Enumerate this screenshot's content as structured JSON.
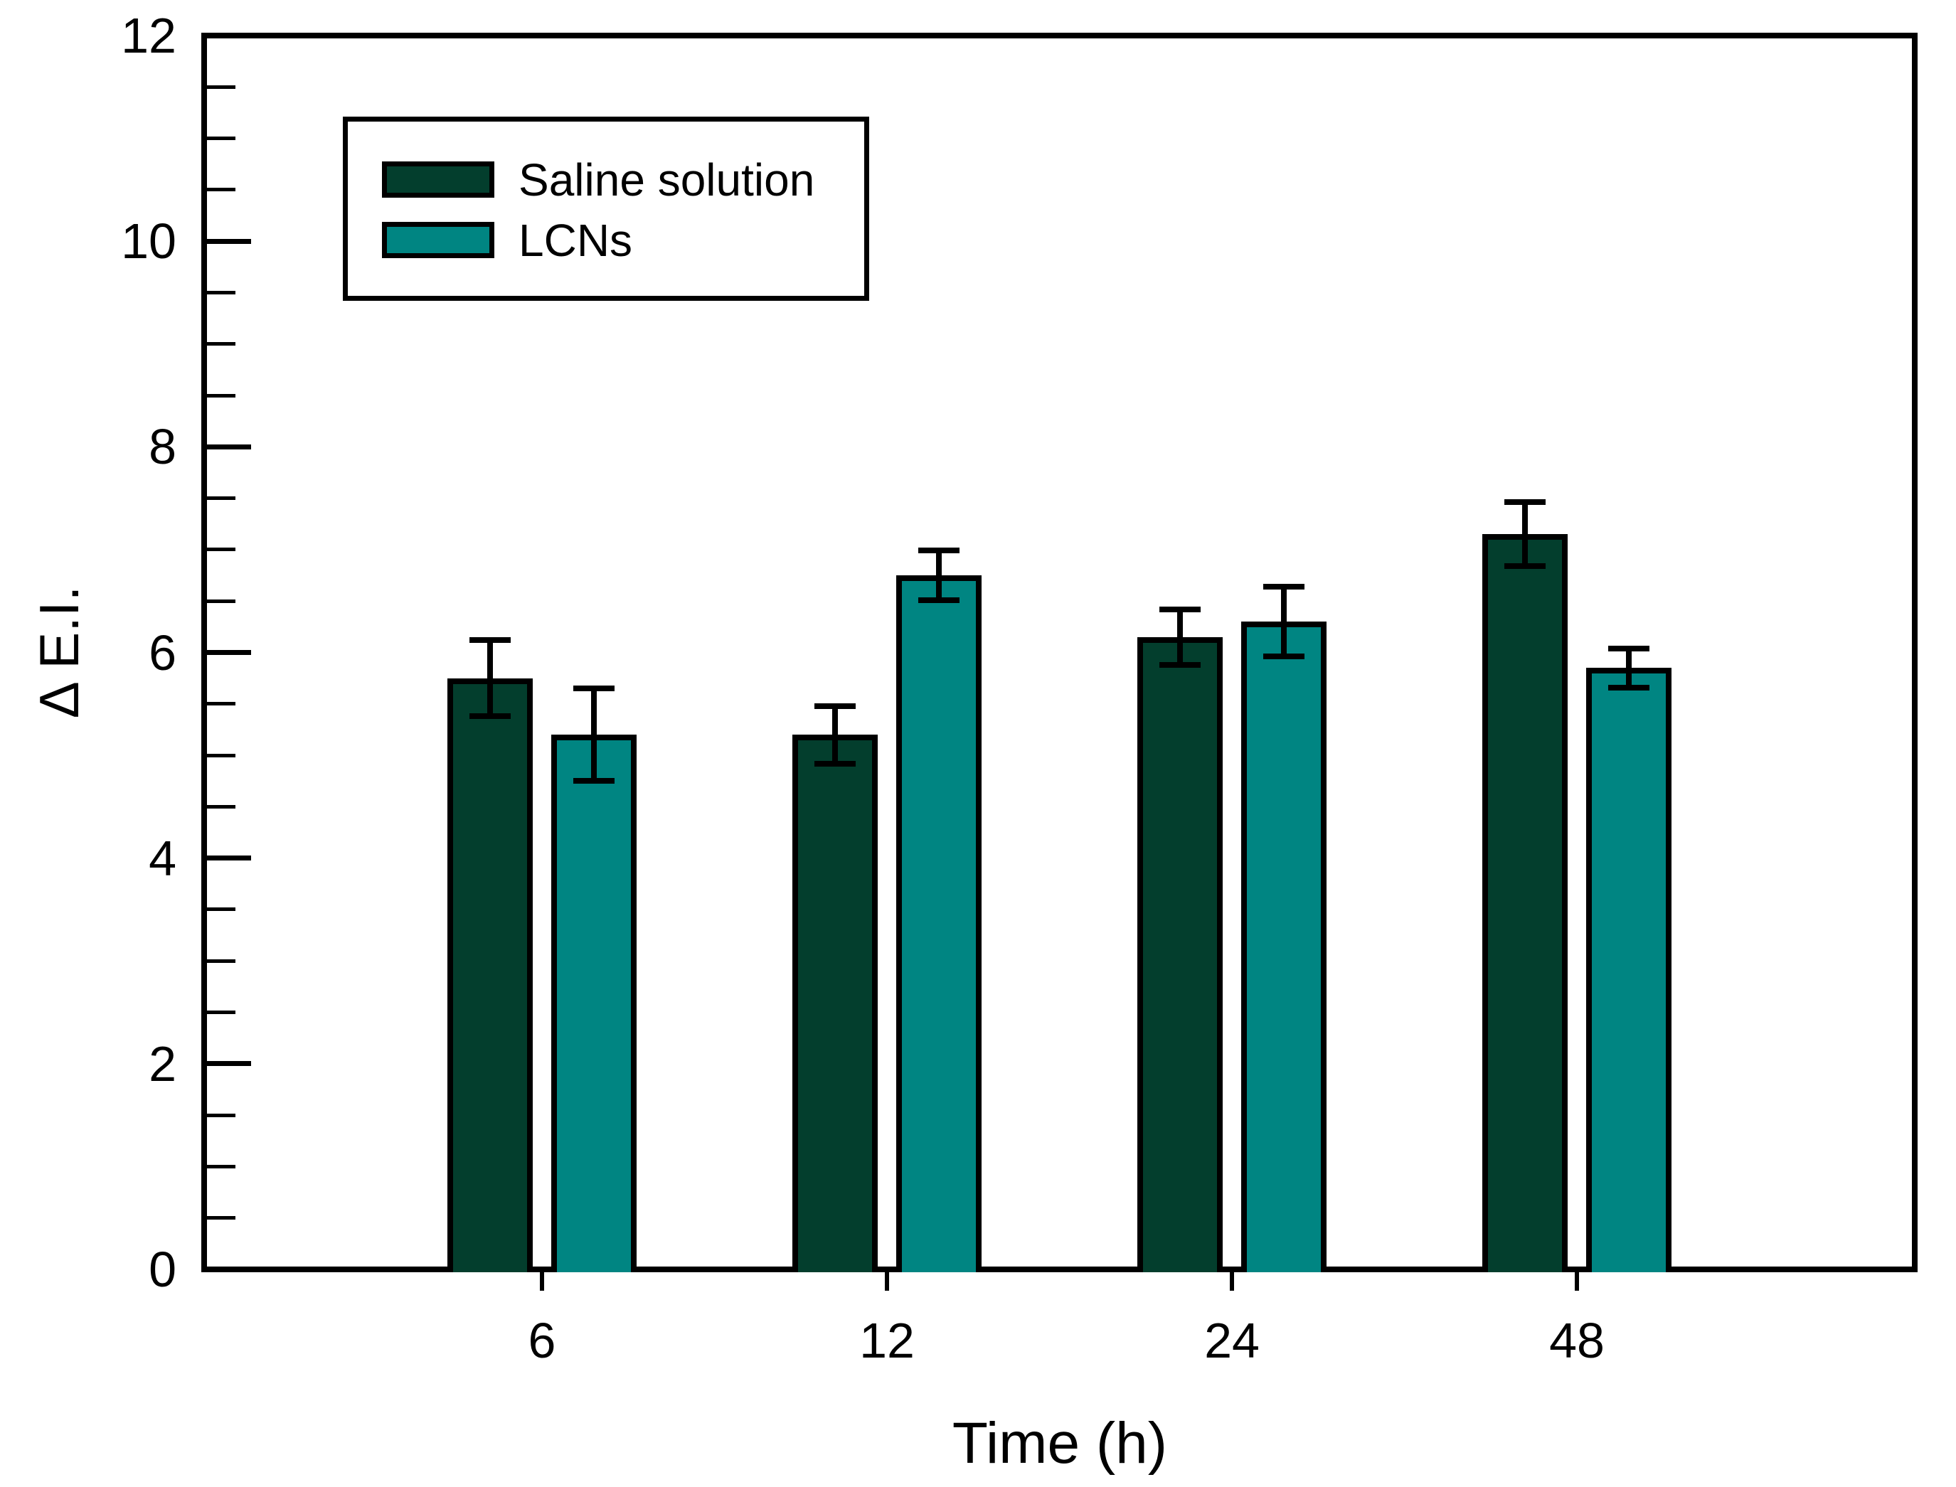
{
  "figure": {
    "background_color": "#ffffff",
    "axis_color": "#000000"
  },
  "chart_data": {
    "type": "bar",
    "title": "",
    "xlabel": "Time (h)",
    "ylabel": "Δ E.I.",
    "categories": [
      "6",
      "12",
      "24",
      "48"
    ],
    "series": [
      {
        "name": "Saline solution",
        "color": "#033e2d",
        "values": [
          5.75,
          5.2,
          6.15,
          7.15
        ],
        "errors": [
          0.37,
          0.28,
          0.27,
          0.31
        ]
      },
      {
        "name": "LCNs",
        "color": "#008582",
        "values": [
          5.2,
          6.75,
          6.3,
          5.85
        ],
        "errors": [
          0.45,
          0.24,
          0.34,
          0.19
        ]
      }
    ],
    "ylim": [
      0,
      12
    ],
    "y_major_ticks": [
      0,
      2,
      4,
      6,
      8,
      10,
      12
    ],
    "y_minor_interval": 0.5,
    "grid": false,
    "error_bars": true,
    "legend_position": "upper-left"
  },
  "legend": {
    "items": [
      {
        "label": "Saline solution",
        "color": "#033e2d"
      },
      {
        "label": "LCNs",
        "color": "#008582"
      }
    ]
  }
}
